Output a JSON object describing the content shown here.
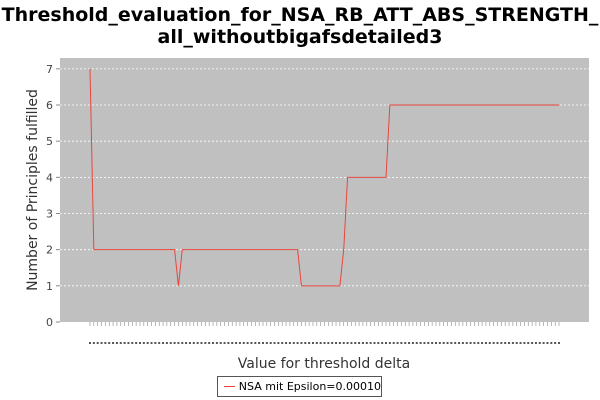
{
  "chart_data": {
    "type": "line",
    "title_line1": "Threshold_evaluation_for_NSA_RB_ATT_ABS_STRENGTH_",
    "title_line2": "all_withoutbigafsdetailed3",
    "xlabel": "Value for threshold delta",
    "ylabel": "Number of Principles fulfilled",
    "ylim": [
      0,
      7.3
    ],
    "yticks": [
      0,
      1,
      2,
      3,
      4,
      5,
      6,
      7
    ],
    "grid": true,
    "legend_position": "bottom",
    "series": [
      {
        "name": "NSA mit Epsilon=0.00010",
        "color": "#e8463c",
        "values": [
          7,
          2,
          2,
          2,
          2,
          2,
          2,
          2,
          2,
          2,
          2,
          2,
          2,
          2,
          2,
          2,
          2,
          2,
          2,
          2,
          2,
          2,
          2,
          1,
          2,
          2,
          2,
          2,
          2,
          2,
          2,
          2,
          2,
          2,
          2,
          2,
          2,
          2,
          2,
          2,
          2,
          2,
          2,
          2,
          2,
          2,
          2,
          2,
          2,
          2,
          2,
          2,
          2,
          2,
          2,
          1,
          1,
          1,
          1,
          1,
          1,
          1,
          1,
          1,
          1,
          1,
          2,
          4,
          4,
          4,
          4,
          4,
          4,
          4,
          4,
          4,
          4,
          4,
          6,
          6,
          6,
          6,
          6,
          6,
          6,
          6,
          6,
          6,
          6,
          6,
          6,
          6,
          6,
          6,
          6,
          6,
          6,
          6,
          6,
          6,
          6,
          6,
          6,
          6,
          6,
          6,
          6,
          6,
          6,
          6,
          6,
          6,
          6,
          6,
          6,
          6,
          6,
          6,
          6,
          6,
          6,
          6,
          6
        ]
      }
    ]
  }
}
